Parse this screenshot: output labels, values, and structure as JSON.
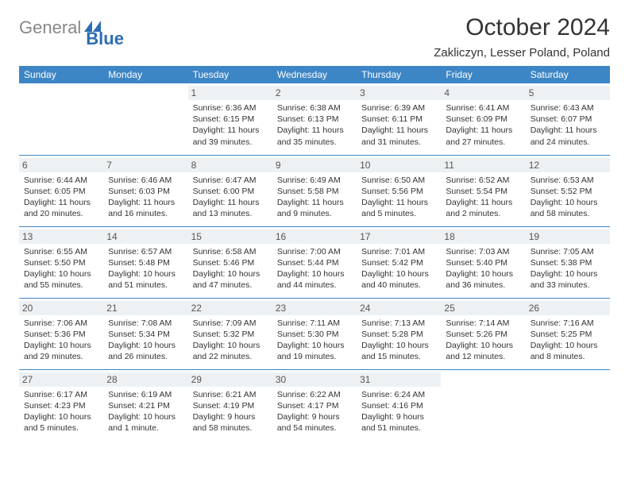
{
  "logo": {
    "gray": "General",
    "blue": "Blue"
  },
  "title": "October 2024",
  "location": "Zakliczyn, Lesser Poland, Poland",
  "colors": {
    "header_bg": "#3d86c6",
    "header_text": "#ffffff",
    "daynum_bg": "#eef1f3",
    "daynum_text": "#555555",
    "border": "#3d86c6",
    "body_text": "#333333",
    "logo_gray": "#888888",
    "logo_blue": "#2d6db3"
  },
  "fonts": {
    "title_size": 30,
    "location_size": 15,
    "header_size": 12,
    "daynum_size": 12,
    "cell_size": 10.5
  },
  "daysOfWeek": [
    "Sunday",
    "Monday",
    "Tuesday",
    "Wednesday",
    "Thursday",
    "Friday",
    "Saturday"
  ],
  "weeks": [
    [
      null,
      null,
      {
        "n": "1",
        "sr": "6:36 AM",
        "ss": "6:15 PM",
        "dl": "11 hours and 39 minutes."
      },
      {
        "n": "2",
        "sr": "6:38 AM",
        "ss": "6:13 PM",
        "dl": "11 hours and 35 minutes."
      },
      {
        "n": "3",
        "sr": "6:39 AM",
        "ss": "6:11 PM",
        "dl": "11 hours and 31 minutes."
      },
      {
        "n": "4",
        "sr": "6:41 AM",
        "ss": "6:09 PM",
        "dl": "11 hours and 27 minutes."
      },
      {
        "n": "5",
        "sr": "6:43 AM",
        "ss": "6:07 PM",
        "dl": "11 hours and 24 minutes."
      }
    ],
    [
      {
        "n": "6",
        "sr": "6:44 AM",
        "ss": "6:05 PM",
        "dl": "11 hours and 20 minutes."
      },
      {
        "n": "7",
        "sr": "6:46 AM",
        "ss": "6:03 PM",
        "dl": "11 hours and 16 minutes."
      },
      {
        "n": "8",
        "sr": "6:47 AM",
        "ss": "6:00 PM",
        "dl": "11 hours and 13 minutes."
      },
      {
        "n": "9",
        "sr": "6:49 AM",
        "ss": "5:58 PM",
        "dl": "11 hours and 9 minutes."
      },
      {
        "n": "10",
        "sr": "6:50 AM",
        "ss": "5:56 PM",
        "dl": "11 hours and 5 minutes."
      },
      {
        "n": "11",
        "sr": "6:52 AM",
        "ss": "5:54 PM",
        "dl": "11 hours and 2 minutes."
      },
      {
        "n": "12",
        "sr": "6:53 AM",
        "ss": "5:52 PM",
        "dl": "10 hours and 58 minutes."
      }
    ],
    [
      {
        "n": "13",
        "sr": "6:55 AM",
        "ss": "5:50 PM",
        "dl": "10 hours and 55 minutes."
      },
      {
        "n": "14",
        "sr": "6:57 AM",
        "ss": "5:48 PM",
        "dl": "10 hours and 51 minutes."
      },
      {
        "n": "15",
        "sr": "6:58 AM",
        "ss": "5:46 PM",
        "dl": "10 hours and 47 minutes."
      },
      {
        "n": "16",
        "sr": "7:00 AM",
        "ss": "5:44 PM",
        "dl": "10 hours and 44 minutes."
      },
      {
        "n": "17",
        "sr": "7:01 AM",
        "ss": "5:42 PM",
        "dl": "10 hours and 40 minutes."
      },
      {
        "n": "18",
        "sr": "7:03 AM",
        "ss": "5:40 PM",
        "dl": "10 hours and 36 minutes."
      },
      {
        "n": "19",
        "sr": "7:05 AM",
        "ss": "5:38 PM",
        "dl": "10 hours and 33 minutes."
      }
    ],
    [
      {
        "n": "20",
        "sr": "7:06 AM",
        "ss": "5:36 PM",
        "dl": "10 hours and 29 minutes."
      },
      {
        "n": "21",
        "sr": "7:08 AM",
        "ss": "5:34 PM",
        "dl": "10 hours and 26 minutes."
      },
      {
        "n": "22",
        "sr": "7:09 AM",
        "ss": "5:32 PM",
        "dl": "10 hours and 22 minutes."
      },
      {
        "n": "23",
        "sr": "7:11 AM",
        "ss": "5:30 PM",
        "dl": "10 hours and 19 minutes."
      },
      {
        "n": "24",
        "sr": "7:13 AM",
        "ss": "5:28 PM",
        "dl": "10 hours and 15 minutes."
      },
      {
        "n": "25",
        "sr": "7:14 AM",
        "ss": "5:26 PM",
        "dl": "10 hours and 12 minutes."
      },
      {
        "n": "26",
        "sr": "7:16 AM",
        "ss": "5:25 PM",
        "dl": "10 hours and 8 minutes."
      }
    ],
    [
      {
        "n": "27",
        "sr": "6:17 AM",
        "ss": "4:23 PM",
        "dl": "10 hours and 5 minutes."
      },
      {
        "n": "28",
        "sr": "6:19 AM",
        "ss": "4:21 PM",
        "dl": "10 hours and 1 minute."
      },
      {
        "n": "29",
        "sr": "6:21 AM",
        "ss": "4:19 PM",
        "dl": "9 hours and 58 minutes."
      },
      {
        "n": "30",
        "sr": "6:22 AM",
        "ss": "4:17 PM",
        "dl": "9 hours and 54 minutes."
      },
      {
        "n": "31",
        "sr": "6:24 AM",
        "ss": "4:16 PM",
        "dl": "9 hours and 51 minutes."
      },
      null,
      null
    ]
  ],
  "labels": {
    "sunrise": "Sunrise: ",
    "sunset": "Sunset: ",
    "daylight": "Daylight: "
  }
}
